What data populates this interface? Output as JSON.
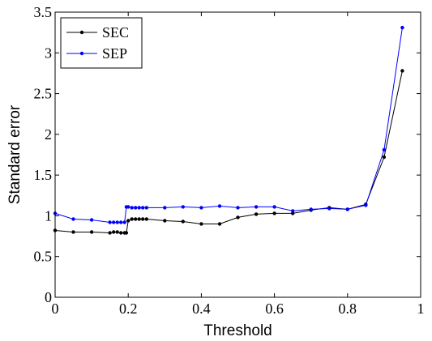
{
  "chart_data": {
    "type": "line",
    "title": "",
    "xlabel": "Threshold",
    "ylabel": "Standard error",
    "xlim": [
      0,
      1
    ],
    "ylim": [
      0,
      3.5
    ],
    "xticks": [
      "0",
      "0.2",
      "0.4",
      "0.6",
      "0.8",
      "1"
    ],
    "yticks": [
      "0",
      "0.5",
      "1",
      "1.5",
      "2",
      "2.5",
      "3",
      "3.5"
    ],
    "grid": false,
    "legend_position": "top-left",
    "series": [
      {
        "name": "SEC",
        "color": "#000000",
        "x": [
          0,
          0.05,
          0.1,
          0.15,
          0.16,
          0.17,
          0.18,
          0.19,
          0.195,
          0.2,
          0.21,
          0.22,
          0.23,
          0.24,
          0.25,
          0.3,
          0.35,
          0.4,
          0.45,
          0.5,
          0.55,
          0.6,
          0.65,
          0.7,
          0.75,
          0.8,
          0.85,
          0.9,
          0.95
        ],
        "y": [
          0.82,
          0.8,
          0.8,
          0.79,
          0.8,
          0.8,
          0.79,
          0.79,
          0.79,
          0.94,
          0.96,
          0.96,
          0.96,
          0.96,
          0.96,
          0.94,
          0.93,
          0.9,
          0.9,
          0.98,
          1.02,
          1.03,
          1.03,
          1.07,
          1.1,
          1.08,
          1.14,
          1.72,
          2.78
        ]
      },
      {
        "name": "SEP",
        "color": "#0000ff",
        "x": [
          0,
          0.05,
          0.1,
          0.15,
          0.16,
          0.17,
          0.18,
          0.19,
          0.195,
          0.2,
          0.21,
          0.22,
          0.23,
          0.24,
          0.25,
          0.3,
          0.35,
          0.4,
          0.45,
          0.5,
          0.55,
          0.6,
          0.65,
          0.7,
          0.75,
          0.8,
          0.85,
          0.9,
          0.95
        ],
        "y": [
          1.03,
          0.96,
          0.95,
          0.92,
          0.92,
          0.92,
          0.92,
          0.92,
          1.11,
          1.11,
          1.1,
          1.1,
          1.1,
          1.1,
          1.1,
          1.1,
          1.11,
          1.1,
          1.12,
          1.1,
          1.11,
          1.11,
          1.06,
          1.08,
          1.09,
          1.08,
          1.13,
          1.81,
          3.31
        ]
      }
    ]
  }
}
